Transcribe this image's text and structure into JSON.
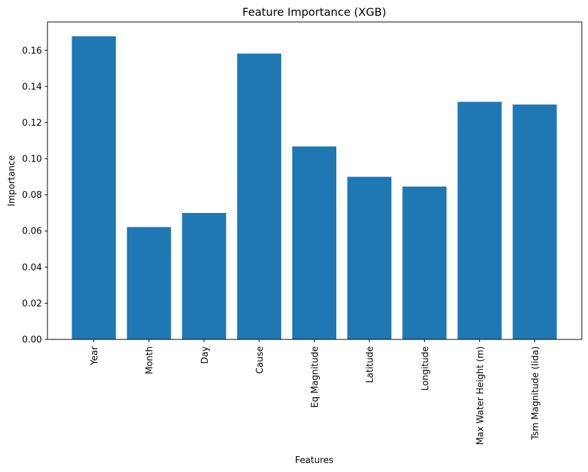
{
  "chart_data": {
    "type": "bar",
    "title": "Feature Importance (XGB)",
    "xlabel": "Features",
    "ylabel": "Importance",
    "categories": [
      "Year",
      "Month",
      "Day",
      "Cause",
      "Eq Magnitude",
      "Latitude",
      "Longitude",
      "Max Water Height (m)",
      "Tsm Magnitude (Iida)"
    ],
    "values": [
      0.1678,
      0.0622,
      0.07,
      0.1582,
      0.1068,
      0.09,
      0.0846,
      0.1315,
      0.13
    ],
    "ylim": [
      0,
      0.1757
    ],
    "yticks": [
      0.0,
      0.02,
      0.04,
      0.06,
      0.08,
      0.1,
      0.12,
      0.14,
      0.16
    ],
    "ytick_labels": [
      "0.00",
      "0.02",
      "0.04",
      "0.06",
      "0.08",
      "0.10",
      "0.12",
      "0.14",
      "0.16"
    ],
    "bar_color": "#1f77b4",
    "grid": false,
    "legend": false
  }
}
